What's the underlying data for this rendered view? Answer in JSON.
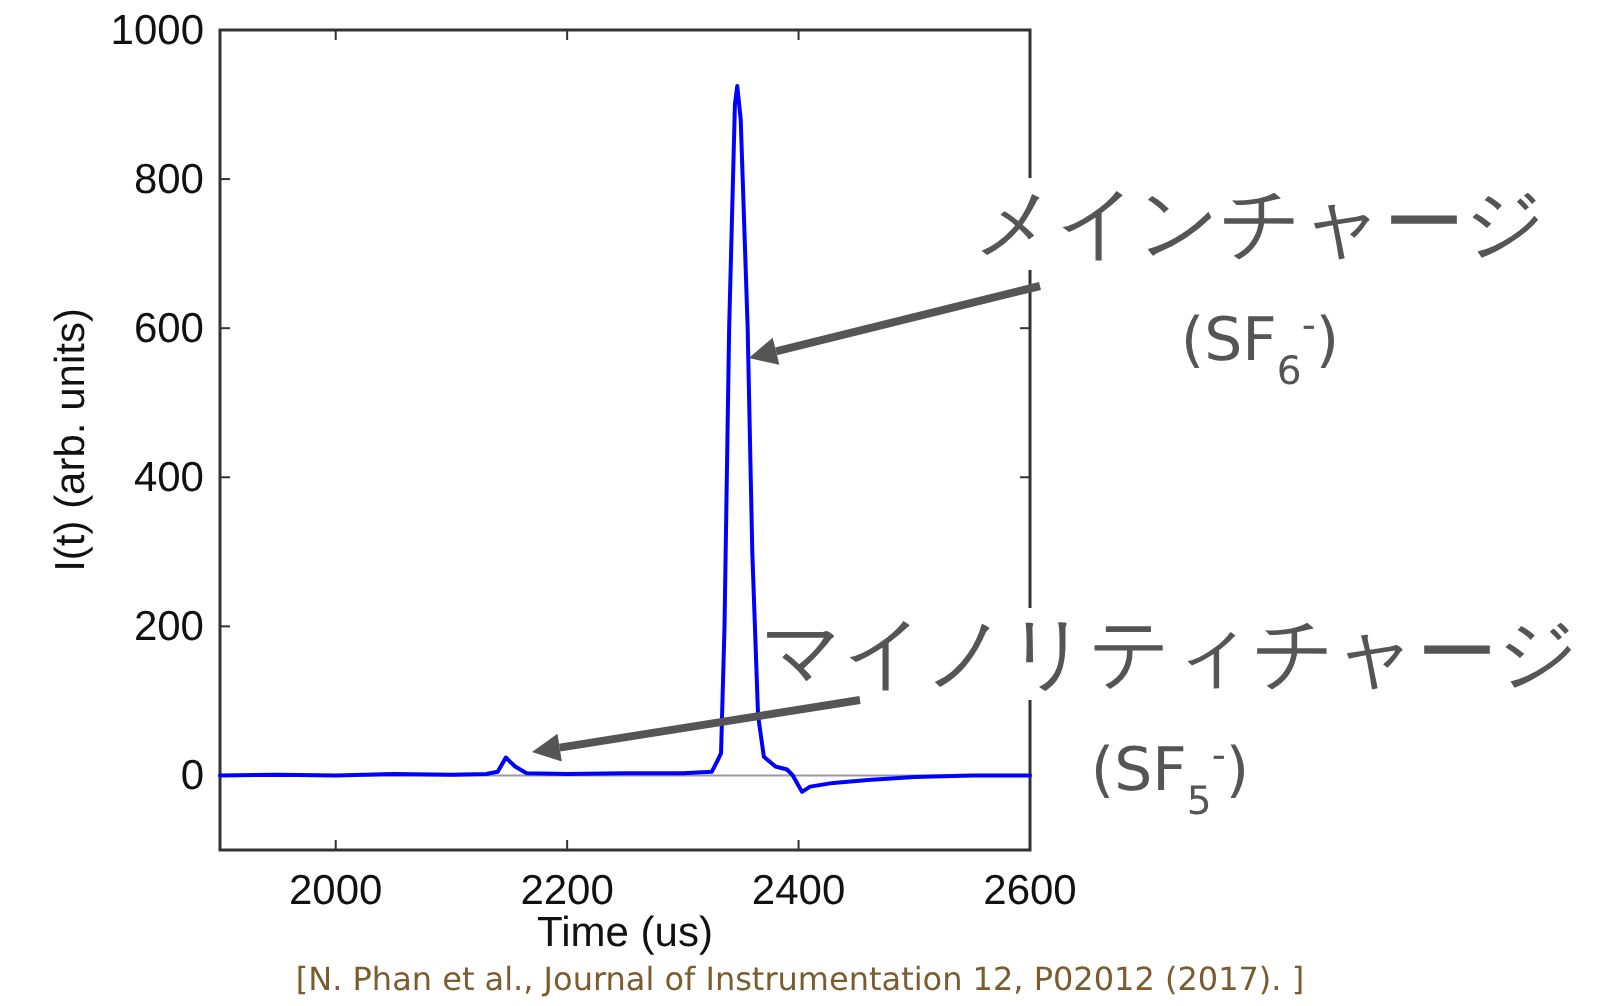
{
  "chart_data": {
    "type": "line",
    "xlabel": "Time (us)",
    "ylabel": "I(t) (arb. units)",
    "x": [
      1900,
      1950,
      2000,
      2050,
      2100,
      2130,
      2140,
      2147,
      2155,
      2165,
      2200,
      2250,
      2300,
      2325,
      2330,
      2333,
      2336,
      2340,
      2345,
      2347,
      2350,
      2356,
      2360,
      2365,
      2370,
      2380,
      2390,
      2395,
      2403,
      2410,
      2430,
      2460,
      2500,
      2550,
      2600
    ],
    "series": [
      {
        "color": "#0000ff",
        "values": [
          0,
          1,
          0,
          2,
          1,
          2,
          5,
          24,
          12,
          3,
          2,
          3,
          3,
          5,
          20,
          30,
          200,
          600,
          900,
          925,
          880,
          600,
          300,
          80,
          25,
          12,
          8,
          0,
          -22,
          -15,
          -10,
          -6,
          -2,
          0,
          0
        ]
      }
    ],
    "xlim": [
      1900,
      2600
    ],
    "xticks": [
      2000,
      2200,
      2400,
      2600
    ],
    "ylim": [
      -100,
      1000
    ],
    "yticks": [
      0,
      200,
      400,
      600,
      800,
      1000
    ],
    "ref_lines": [
      {
        "axis": "y",
        "value": 0,
        "color": "#999999"
      }
    ],
    "annotations": [
      {
        "text": "メインチャージ\n(SF$_{6}$$^{-}$)",
        "x": 2357,
        "y": 560
      },
      "マイノリティチャージ\n(SF$_{5}$$^{-}$)",
      "[N. Phan et al., Journal of Instrumentation 12, P02012 (2017). ]"
    ],
    "grid": false,
    "line_style": "solid"
  }
}
